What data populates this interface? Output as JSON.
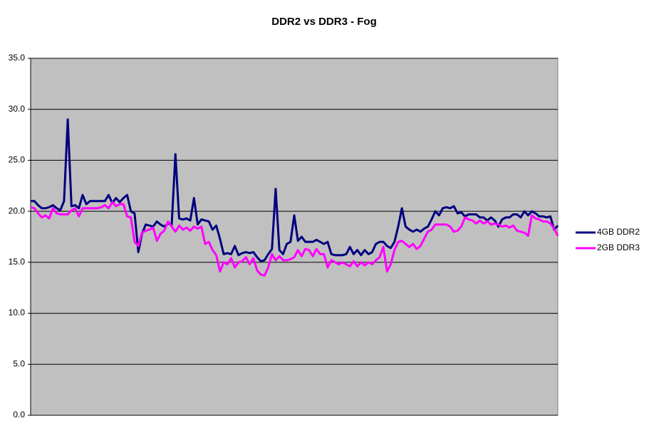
{
  "chart_data": {
    "type": "line",
    "title": "DDR2 vs DDR3 - Fog",
    "ylim": [
      0,
      35
    ],
    "yticks": [
      {
        "value": 0,
        "label": "0.0"
      },
      {
        "value": 5,
        "label": "5.0"
      },
      {
        "value": 10,
        "label": "10.0"
      },
      {
        "value": 15,
        "label": "15.0"
      },
      {
        "value": 20,
        "label": "20.0"
      },
      {
        "value": 25,
        "label": "25.0"
      },
      {
        "value": 30,
        "label": "30.0"
      },
      {
        "value": 35,
        "label": "35.0"
      }
    ],
    "grid": true,
    "legend": "right",
    "series": [
      {
        "name": "4GB DDR2",
        "color": "#000080",
        "values": [
          21,
          21,
          20.6,
          20.3,
          20.3,
          20.4,
          20.6,
          20.3,
          20.1,
          21,
          29,
          20.5,
          20.6,
          20.3,
          21.6,
          20.7,
          21,
          21,
          21,
          21,
          21,
          21.6,
          20.8,
          21.3,
          20.9,
          21.3,
          21.6,
          20,
          19.8,
          16,
          17.8,
          18.7,
          18.6,
          18.5,
          19,
          18.7,
          18.5,
          18.8,
          18.7,
          25.6,
          19.3,
          19.2,
          19.3,
          19.1,
          21.3,
          18.7,
          19.2,
          19.1,
          19,
          18.2,
          18.6,
          17.3,
          15.8,
          15.9,
          15.8,
          16.6,
          15.7,
          15.9,
          16,
          15.9,
          16,
          15.5,
          15.1,
          15.2,
          15.8,
          16.3,
          22.2,
          16.2,
          15.8,
          16.8,
          17,
          19.6,
          17.1,
          17.5,
          17,
          17,
          17,
          17.2,
          17,
          16.8,
          17,
          15.8,
          15.7,
          15.7,
          15.7,
          15.8,
          16.5,
          15.8,
          16.2,
          15.7,
          16.2,
          15.8,
          16,
          16.8,
          17,
          17,
          16.6,
          16.4,
          17,
          18.5,
          20.3,
          18.5,
          18.2,
          18,
          18.2,
          18,
          18.3,
          18.5,
          19.2,
          20,
          19.6,
          20.3,
          20.4,
          20.3,
          20.5,
          19.8,
          19.9,
          19.5,
          19.7,
          19.7,
          19.7,
          19.4,
          19.4,
          19.1,
          19.4,
          19.1,
          18.5,
          19.2,
          19.4,
          19.4,
          19.7,
          19.7,
          19.4,
          20,
          19.6,
          20,
          19.8,
          19.5,
          19.5,
          19.4,
          19.5,
          18.2,
          18.6
        ]
      },
      {
        "name": "2GB DDR3",
        "color": "#ff00ff",
        "values": [
          20.4,
          20.3,
          19.8,
          19.4,
          19.6,
          19.3,
          20.3,
          19.8,
          19.7,
          19.7,
          19.7,
          20.1,
          20.3,
          19.5,
          20.3,
          20.3,
          20.3,
          20.3,
          20.3,
          20.4,
          20.6,
          20.3,
          20.9,
          20.5,
          20.7,
          20.7,
          19.5,
          19.4,
          17,
          16.6,
          17.9,
          18.1,
          18.2,
          18.4,
          17.1,
          17.8,
          18.1,
          19,
          18.5,
          18,
          18.6,
          18.2,
          18.4,
          18.1,
          18.5,
          18.3,
          18.5,
          16.8,
          17,
          16.2,
          15.7,
          14.1,
          15,
          14.8,
          15.4,
          14.5,
          15,
          15.1,
          15.5,
          14.8,
          15.4,
          14.2,
          13.8,
          13.7,
          14.5,
          15.8,
          15.2,
          15.6,
          15.2,
          15.2,
          15.3,
          15.5,
          16.2,
          15.6,
          16.3,
          16.2,
          15.6,
          16.3,
          15.8,
          15.8,
          14.5,
          15.2,
          15,
          14.8,
          15,
          14.8,
          14.6,
          15.1,
          14.6,
          15,
          14.7,
          15,
          14.8,
          15.2,
          15.5,
          16.5,
          14.1,
          14.8,
          16.2,
          17,
          17.1,
          16.8,
          16.5,
          16.8,
          16.3,
          16.6,
          17.3,
          18,
          18.2,
          18.7,
          18.7,
          18.7,
          18.7,
          18.5,
          18,
          18.1,
          18.5,
          19.4,
          19.2,
          19.1,
          18.8,
          19.1,
          18.8,
          19,
          18.7,
          18.8,
          18.7,
          18.5,
          18.6,
          18.4,
          18.6,
          18.1,
          18,
          17.9,
          17.6,
          19.6,
          19.3,
          19.2,
          19,
          19,
          18.8,
          18.3,
          17.6
        ]
      }
    ]
  }
}
